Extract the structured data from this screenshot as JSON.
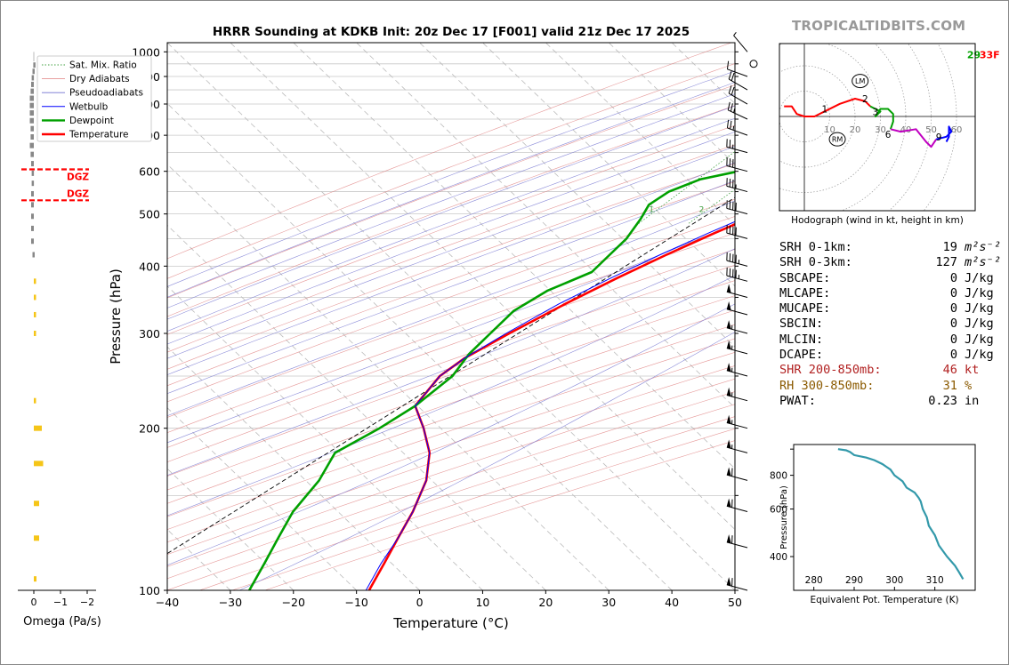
{
  "title": "HRRR Sounding at KDKB Init: 20z Dec 17 [F001] valid 21z Dec 17 2025",
  "brand": "TROPICALTIDBITS.COM",
  "chart_data": [
    {
      "type": "line",
      "name": "skewt",
      "xlabel": "Temperature (°C)",
      "ylabel": "Pressure (hPa)",
      "xlim": [
        -40,
        50
      ],
      "ylim": [
        1040,
        100
      ],
      "y_scale": "log",
      "x_ticks": [
        "−40",
        "−30",
        "−20",
        "−10",
        "0",
        "10",
        "20",
        "30",
        "40",
        "50"
      ],
      "y_ticks": [
        "100",
        "200",
        "300",
        "400",
        "500",
        "600",
        "700",
        "800",
        "900",
        "1000"
      ],
      "legend": {
        "placement": "top-left",
        "entries": [
          "Sat. Mix. Ratio",
          "Dry Adiabats",
          "Pseudoadiabats",
          "Wetbulb",
          "Dewpoint",
          "Temperature"
        ]
      },
      "mixing_ratio_labels": [
        "1",
        "2",
        "4",
        "6",
        "8",
        "10",
        "13",
        "16",
        "20",
        "24",
        "30",
        "36"
      ],
      "mixing_ratio_values": [
        1,
        2,
        4,
        6,
        8,
        10,
        13,
        16,
        20,
        24,
        30,
        36
      ],
      "series": [
        {
          "name": "Temperature",
          "color": "#ff0000",
          "points": [
            [
              2,
              1000
            ],
            [
              3,
              985
            ],
            [
              4,
              965
            ],
            [
              10,
              942
            ],
            [
              12,
              910
            ],
            [
              11.5,
              880
            ],
            [
              11,
              830
            ],
            [
              9.5,
              770
            ],
            [
              8,
              740
            ],
            [
              4.5,
              700
            ],
            [
              1.5,
              660
            ],
            [
              -1,
              620
            ],
            [
              -2.5,
              580
            ],
            [
              -4,
              550
            ],
            [
              -6,
              520
            ],
            [
              -9,
              490
            ],
            [
              -12,
              460
            ],
            [
              -16,
              420
            ],
            [
              -20,
              380
            ],
            [
              -24,
              340
            ],
            [
              -28,
              300
            ],
            [
              -31,
              270
            ],
            [
              -32,
              250
            ],
            [
              -31,
              220
            ],
            [
              -26,
              200
            ],
            [
              -21,
              180
            ],
            [
              -17,
              160
            ],
            [
              -14,
              140
            ],
            [
              -12,
              125
            ],
            [
              -10,
              112
            ],
            [
              -8,
              100
            ]
          ]
        },
        {
          "name": "Dewpoint",
          "color": "#00a000",
          "points": [
            [
              0,
              1000
            ],
            [
              -1,
              985
            ],
            [
              -2,
              965
            ],
            [
              -18,
              950
            ],
            [
              -24,
              900
            ],
            [
              -19,
              860
            ],
            [
              -20,
              850
            ],
            [
              -25,
              820
            ],
            [
              -25,
              800
            ],
            [
              -19,
              750
            ],
            [
              -13,
              700
            ],
            [
              -11,
              670
            ],
            [
              -12,
              640
            ],
            [
              -16,
              610
            ],
            [
              -23,
              580
            ],
            [
              -26,
              550
            ],
            [
              -27,
              520
            ],
            [
              -26,
              490
            ],
            [
              -25,
              450
            ],
            [
              -25,
              420
            ],
            [
              -25,
              390
            ],
            [
              -29,
              360
            ],
            [
              -31,
              330
            ],
            [
              -31,
              300
            ],
            [
              -31,
              275
            ],
            [
              -30,
              250
            ],
            [
              -31,
              220
            ],
            [
              -33,
              200
            ],
            [
              -36,
              180
            ],
            [
              -34,
              160
            ],
            [
              -33,
              140
            ],
            [
              -31,
              125
            ],
            [
              -29,
              112
            ],
            [
              -27,
              100
            ]
          ]
        },
        {
          "name": "Wetbulb",
          "color": "#0000ff",
          "points": [
            [
              2,
              1000
            ],
            [
              2,
              985
            ],
            [
              2.5,
              965
            ],
            [
              3,
              942
            ],
            [
              3,
              910
            ],
            [
              2.5,
              880
            ],
            [
              2.5,
              830
            ],
            [
              2,
              770
            ],
            [
              2,
              740
            ],
            [
              1.5,
              700
            ],
            [
              0.5,
              660
            ],
            [
              -1.5,
              620
            ],
            [
              -3,
              580
            ],
            [
              -5,
              550
            ],
            [
              -7,
              520
            ],
            [
              -10,
              490
            ],
            [
              -13,
              460
            ],
            [
              -17,
              420
            ],
            [
              -21,
              380
            ],
            [
              -25,
              340
            ],
            [
              -28.5,
              300
            ],
            [
              -31,
              270
            ],
            [
              -32,
              250
            ],
            [
              -31,
              220
            ],
            [
              -26,
              200
            ],
            [
              -21,
              180
            ],
            [
              -17,
              160
            ],
            [
              -14,
              140
            ],
            [
              -12,
              125
            ],
            [
              -10.5,
              112
            ],
            [
              -8.5,
              100
            ]
          ]
        }
      ],
      "surface_label": "29",
      "surface_label_2": "33F",
      "winds": {
        "note": "wind barbs at levels",
        "levels": [
          {
            "p": 100,
            "dir": 285,
            "spd": 60
          },
          {
            "p": 120,
            "dir": 285,
            "spd": 60
          },
          {
            "p": 140,
            "dir": 285,
            "spd": 60
          },
          {
            "p": 160,
            "dir": 285,
            "spd": 60
          },
          {
            "p": 180,
            "dir": 285,
            "spd": 55
          },
          {
            "p": 200,
            "dir": 285,
            "spd": 55
          },
          {
            "p": 225,
            "dir": 285,
            "spd": 55
          },
          {
            "p": 250,
            "dir": 285,
            "spd": 55
          },
          {
            "p": 275,
            "dir": 285,
            "spd": 55
          },
          {
            "p": 300,
            "dir": 285,
            "spd": 55
          },
          {
            "p": 325,
            "dir": 285,
            "spd": 50
          },
          {
            "p": 350,
            "dir": 285,
            "spd": 50
          },
          {
            "p": 375,
            "dir": 285,
            "spd": 45
          },
          {
            "p": 400,
            "dir": 285,
            "spd": 45
          },
          {
            "p": 450,
            "dir": 285,
            "spd": 40
          },
          {
            "p": 500,
            "dir": 285,
            "spd": 40
          },
          {
            "p": 550,
            "dir": 285,
            "spd": 35
          },
          {
            "p": 600,
            "dir": 285,
            "spd": 30
          },
          {
            "p": 650,
            "dir": 285,
            "spd": 25
          },
          {
            "p": 700,
            "dir": 290,
            "spd": 25
          },
          {
            "p": 750,
            "dir": 295,
            "spd": 25
          },
          {
            "p": 800,
            "dir": 300,
            "spd": 20
          },
          {
            "p": 850,
            "dir": 300,
            "spd": 20
          },
          {
            "p": 900,
            "dir": 290,
            "spd": 10
          },
          {
            "p": 950,
            "dir": 0,
            "spd": 0
          },
          {
            "p": 1000,
            "dir": 320,
            "spd": 5
          }
        ]
      }
    },
    {
      "type": "bar",
      "name": "omega",
      "xlabel": "Omega (Pa/s)",
      "x_ticks": [
        "0",
        "−1",
        "−2"
      ],
      "xlim": [
        0.3,
        -2.5
      ],
      "dgz_label": "DGZ",
      "dgz_pressures": [
        530,
        605
      ],
      "bars": [
        {
          "p": 105,
          "v": -0.1,
          "c": "#f5c518"
        },
        {
          "p": 125,
          "v": -0.2,
          "c": "#f5c518"
        },
        {
          "p": 145,
          "v": -0.2,
          "c": "#f5c518"
        },
        {
          "p": 172,
          "v": -0.35,
          "c": "#f5c518"
        },
        {
          "p": 200,
          "v": -0.3,
          "c": "#f5c518"
        },
        {
          "p": 225,
          "v": -0.05,
          "c": "#f5c518"
        },
        {
          "p": 300,
          "v": -0.02,
          "c": "#f5c518"
        },
        {
          "p": 325,
          "v": -0.02,
          "c": "#f5c518"
        },
        {
          "p": 350,
          "v": -0.05,
          "c": "#f5c518"
        },
        {
          "p": 375,
          "v": -0.05,
          "c": "#f5c518"
        },
        {
          "p": 420,
          "v": 0.05,
          "c": "#888888"
        },
        {
          "p": 445,
          "v": 0.1,
          "c": "#888888"
        },
        {
          "p": 470,
          "v": 0.1,
          "c": "#888888"
        },
        {
          "p": 495,
          "v": 0.1,
          "c": "#888888"
        },
        {
          "p": 520,
          "v": 0.1,
          "c": "#888888"
        },
        {
          "p": 545,
          "v": 0.1,
          "c": "#888888"
        },
        {
          "p": 570,
          "v": 0.08,
          "c": "#888888"
        },
        {
          "p": 595,
          "v": 0.08,
          "c": "#888888"
        },
        {
          "p": 620,
          "v": 0.1,
          "c": "#888888"
        },
        {
          "p": 645,
          "v": 0.12,
          "c": "#888888"
        },
        {
          "p": 670,
          "v": 0.15,
          "c": "#888888"
        },
        {
          "p": 695,
          "v": 0.12,
          "c": "#888888"
        },
        {
          "p": 720,
          "v": 0.12,
          "c": "#888888"
        },
        {
          "p": 745,
          "v": 0.15,
          "c": "#888888"
        },
        {
          "p": 770,
          "v": 0.15,
          "c": "#888888"
        },
        {
          "p": 795,
          "v": 0.15,
          "c": "#888888"
        },
        {
          "p": 820,
          "v": 0.15,
          "c": "#888888"
        },
        {
          "p": 845,
          "v": 0.12,
          "c": "#888888"
        },
        {
          "p": 870,
          "v": 0.1,
          "c": "#888888"
        },
        {
          "p": 895,
          "v": 0.08,
          "c": "#888888"
        },
        {
          "p": 920,
          "v": 0.05,
          "c": "#888888"
        },
        {
          "p": 945,
          "v": 0.02,
          "c": "#888888"
        }
      ]
    },
    {
      "type": "line",
      "name": "hodograph",
      "xlabel": "Hodograph (wind in kt, height in km)",
      "ring_labels": [
        "10",
        "20",
        "30",
        "40",
        "50",
        "60"
      ],
      "rings": [
        10,
        20,
        30,
        40,
        50,
        60
      ],
      "height_labels": [
        "1",
        "2",
        "3",
        "6",
        "9"
      ],
      "lm_label": "LM",
      "rm_label": "RM",
      "lm": [
        22,
        14
      ],
      "rm": [
        13,
        -9
      ],
      "segments": [
        {
          "color": "#ff0000",
          "points": [
            [
              -8,
              4
            ],
            [
              -5,
              4
            ],
            [
              -3,
              1
            ],
            [
              0,
              0
            ],
            [
              4,
              0
            ],
            [
              8,
              2
            ],
            [
              14,
              5
            ],
            [
              20,
              7
            ],
            [
              24,
              6
            ],
            [
              26,
              4
            ]
          ]
        },
        {
          "color": "#00a000",
          "points": [
            [
              26,
              4
            ],
            [
              28,
              3
            ],
            [
              30,
              2
            ],
            [
              28,
              0
            ],
            [
              30,
              3
            ],
            [
              33,
              3
            ],
            [
              35,
              1
            ],
            [
              35,
              -2
            ],
            [
              34,
              -5
            ]
          ]
        },
        {
          "color": "#c000c0",
          "points": [
            [
              34,
              -5
            ],
            [
              38,
              -6
            ],
            [
              44,
              -5
            ],
            [
              48,
              -10
            ],
            [
              50,
              -12
            ],
            [
              52,
              -9
            ]
          ]
        },
        {
          "color": "#0000ff",
          "points": [
            [
              52,
              -9
            ],
            [
              56,
              -8
            ],
            [
              58,
              -6
            ],
            [
              57,
              -4
            ],
            [
              57,
              -8
            ],
            [
              56,
              -10
            ]
          ]
        }
      ],
      "height_label_points": [
        [
          8,
          3
        ],
        [
          24,
          7
        ],
        [
          28,
          2
        ],
        [
          33,
          -7
        ],
        [
          53,
          -8
        ]
      ]
    },
    {
      "type": "line",
      "name": "theta-e",
      "xlabel": "Equivalent Pot. Temperature (K)",
      "ylabel": "Pressure (hPa)",
      "xlim": [
        275,
        320
      ],
      "ylim": [
        1040,
        300
      ],
      "y_scale": "log",
      "x_ticks": [
        "280",
        "290",
        "300",
        "310"
      ],
      "y_ticks": [
        "400",
        "600",
        "800"
      ],
      "color": "#3399aa",
      "points": [
        [
          286,
          1000
        ],
        [
          288,
          990
        ],
        [
          289,
          975
        ],
        [
          290,
          950
        ],
        [
          293,
          930
        ],
        [
          295,
          910
        ],
        [
          297,
          880
        ],
        [
          298,
          860
        ],
        [
          299,
          840
        ],
        [
          300,
          800
        ],
        [
          302,
          760
        ],
        [
          303,
          720
        ],
        [
          305,
          690
        ],
        [
          306,
          660
        ],
        [
          306.5,
          640
        ],
        [
          307,
          600
        ],
        [
          308,
          560
        ],
        [
          308.5,
          520
        ],
        [
          310,
          480
        ],
        [
          311,
          440
        ],
        [
          313,
          400
        ],
        [
          315,
          370
        ],
        [
          316,
          350
        ],
        [
          317,
          330
        ]
      ]
    }
  ],
  "stats": [
    {
      "label": "SRH 0-1km:",
      "value": "19",
      "unit": "m²s⁻²",
      "color": "#000000"
    },
    {
      "label": "SRH 0-3km:",
      "value": "127",
      "unit": "m²s⁻²",
      "color": "#000000"
    },
    {
      "label": "SBCAPE:",
      "value": "0",
      "unit": "J/kg",
      "color": "#000000"
    },
    {
      "label": "MLCAPE:",
      "value": "0",
      "unit": "J/kg",
      "color": "#000000"
    },
    {
      "label": "MUCAPE:",
      "value": "0",
      "unit": "J/kg",
      "color": "#000000"
    },
    {
      "label": "SBCIN:",
      "value": "0",
      "unit": "J/kg",
      "color": "#000000"
    },
    {
      "label": "MLCIN:",
      "value": "0",
      "unit": "J/kg",
      "color": "#000000"
    },
    {
      "label": "DCAPE:",
      "value": "0",
      "unit": "J/kg",
      "color": "#000000"
    },
    {
      "label": "SHR 200-850mb:",
      "value": "46",
      "unit": "kt",
      "color": "#b22222"
    },
    {
      "label": "RH 300-850mb:",
      "value": "31",
      "unit": "%",
      "color": "#8b5a00"
    },
    {
      "label": "PWAT:",
      "value": "0.23",
      "unit": "in",
      "color": "#000000"
    }
  ]
}
